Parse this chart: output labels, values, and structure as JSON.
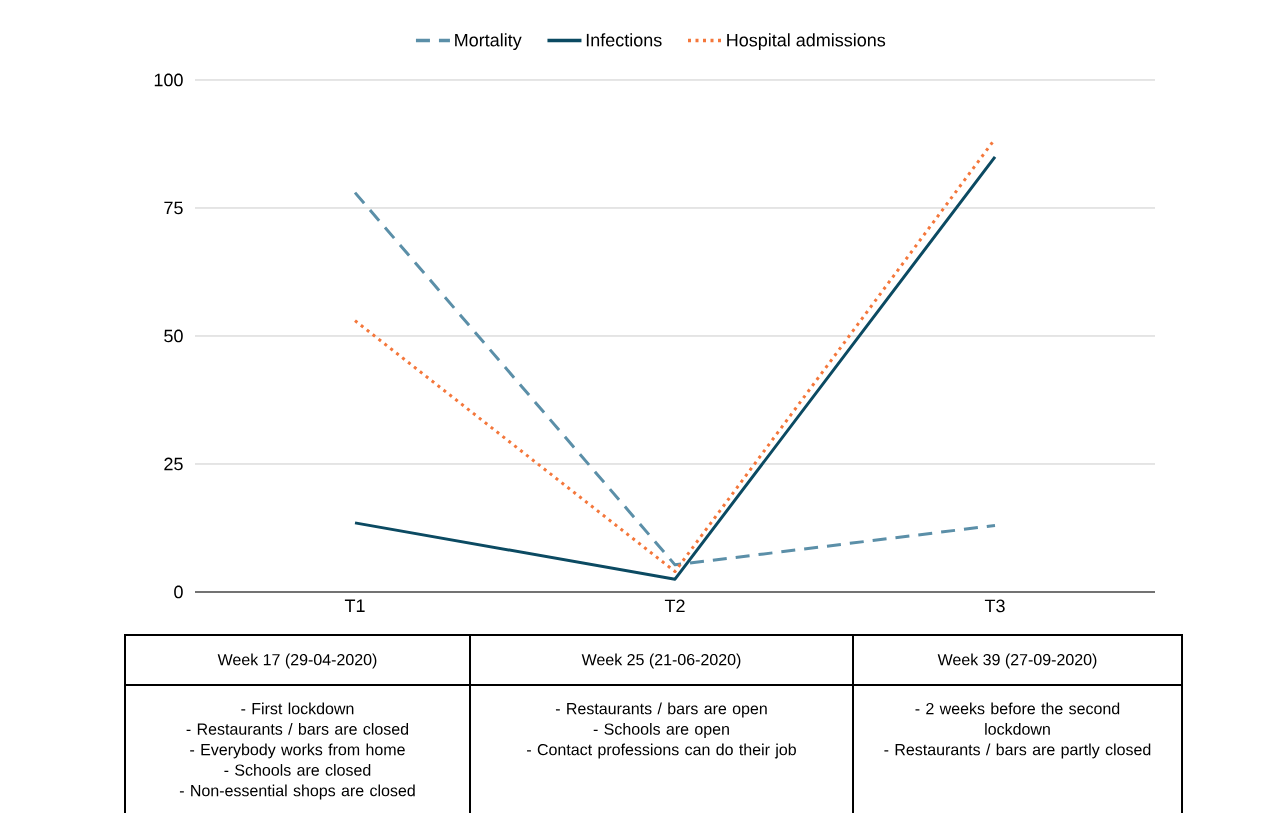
{
  "chart_data": {
    "type": "line",
    "categories": [
      "T1",
      "T2",
      "T3"
    ],
    "series": [
      {
        "name": "Mortality",
        "color": "#5b8fa8",
        "line_style": "dashed",
        "values": [
          78,
          5.3,
          13
        ]
      },
      {
        "name": "Infections",
        "color": "#0b4a62",
        "line_style": "solid",
        "values": [
          13.5,
          2.5,
          85
        ]
      },
      {
        "name": "Hospital admissions",
        "color": "#f4773b",
        "line_style": "dotted",
        "values": [
          53,
          4,
          88.5
        ]
      }
    ],
    "ylim": [
      0,
      100
    ],
    "yticks": [
      0,
      25,
      50,
      75,
      100
    ],
    "grid": "y",
    "legend": "top",
    "marker": "none",
    "annotations": [
      "Week 17 (29-04-2020)",
      "Week 25 (21-06-2020)",
      "Week 39 (27-09-2020)",
      "- First lockdown\n- Restaurants / bars are closed\n- Everybody works from home\n- Schools are closed\n- Non-essential shops are closed",
      "- Restaurants / bars are open\n- Schools are open\n- Contact professions can do their job",
      "- 2 weeks before the second\nlockdown\n- Restaurants / bars are partly closed"
    ]
  }
}
